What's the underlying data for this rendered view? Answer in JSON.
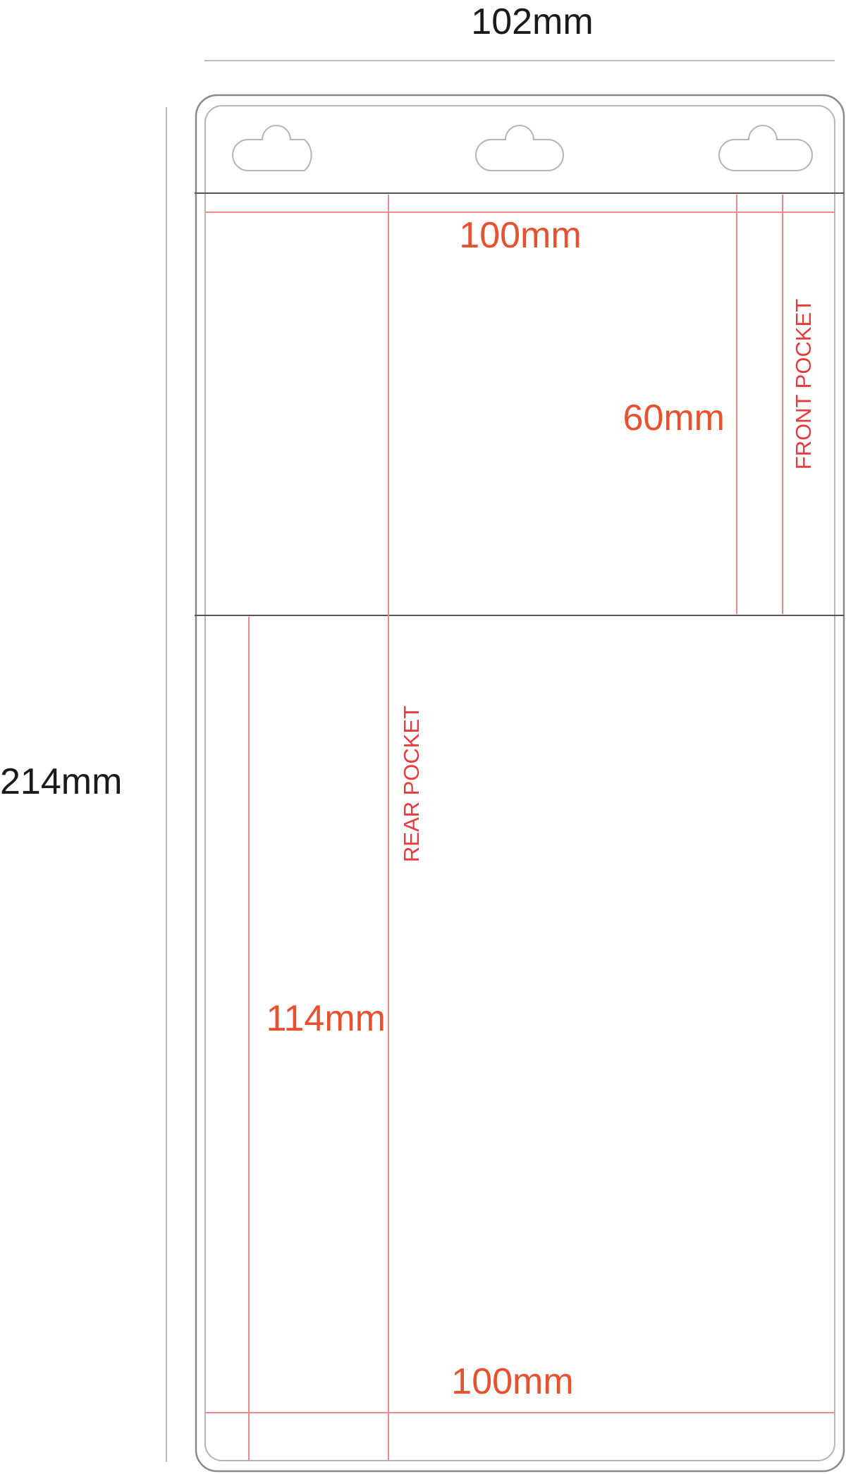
{
  "pouch": {
    "overall_width": "102mm",
    "overall_height": "214mm",
    "hang_holes": 3
  },
  "front_pocket": {
    "label": "FRONT POCKET",
    "width": "100mm",
    "height": "60mm"
  },
  "rear_pocket": {
    "label": "REAR POCKET",
    "width": "100mm",
    "height": "114mm"
  },
  "colors": {
    "outline": "#8a8a8a",
    "guide": "#f08a8a",
    "dimension_text": "#e8502e",
    "pocket_label": "#e83a3a"
  }
}
